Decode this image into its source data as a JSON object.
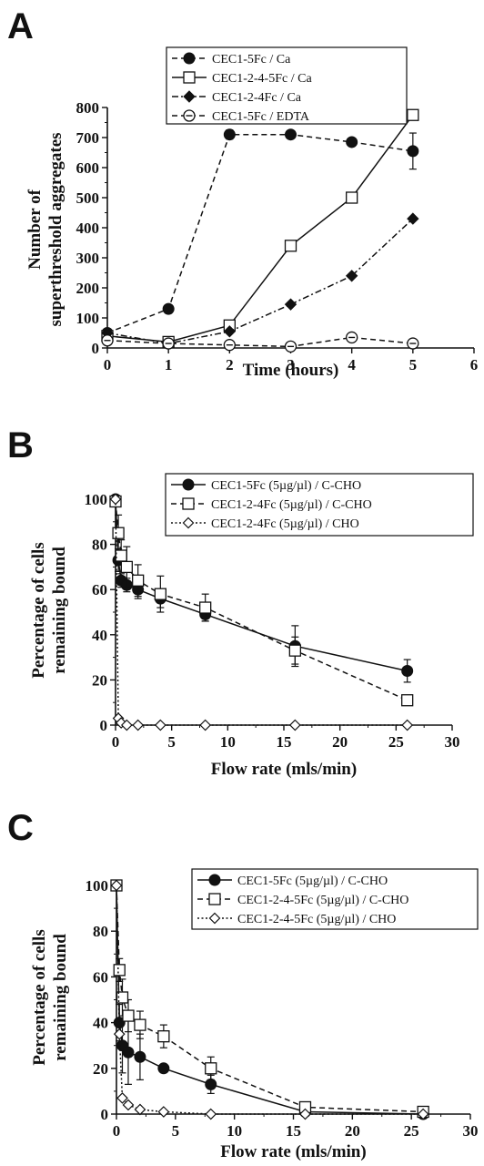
{
  "chart_data": [
    {
      "panel": "A",
      "type": "line",
      "xlabel": "Time (hours)",
      "ylabel": [
        "Number of",
        "superthreshold aggregates"
      ],
      "xlim": [
        0,
        6
      ],
      "ylim": [
        0,
        800
      ],
      "xticks": [
        "0",
        "1",
        "2",
        "3",
        "4",
        "5",
        "6"
      ],
      "yticks": [
        "0",
        "100",
        "200",
        "300",
        "400",
        "500",
        "600",
        "700",
        "800"
      ],
      "legend_position": "top",
      "series": [
        {
          "name": "CEC1-5Fc / Ca",
          "marker": "circle-filled",
          "line": "dashed",
          "x": [
            0,
            1,
            2,
            3,
            4,
            5
          ],
          "y": [
            50,
            130,
            710,
            710,
            685,
            655
          ],
          "err": [
            0,
            0,
            15,
            0,
            0,
            60
          ]
        },
        {
          "name": "CEC1-2-4-5Fc / Ca",
          "marker": "square-open",
          "line": "solid",
          "x": [
            0,
            1,
            2,
            3,
            4,
            5
          ],
          "y": [
            40,
            20,
            75,
            340,
            500,
            775
          ],
          "err": [
            0,
            0,
            0,
            0,
            0,
            0
          ]
        },
        {
          "name": "CEC1-2-4Fc / Ca",
          "marker": "diamond-filled",
          "line": "dashdot",
          "x": [
            0,
            1,
            2,
            3,
            4,
            5
          ],
          "y": [
            50,
            15,
            55,
            145,
            240,
            430
          ],
          "err": [
            0,
            0,
            0,
            0,
            0,
            0
          ]
        },
        {
          "name": "CEC1-5Fc / EDTA",
          "marker": "circle-open-dot",
          "line": "dashed",
          "x": [
            0,
            1,
            2,
            3,
            4,
            5
          ],
          "y": [
            25,
            15,
            10,
            5,
            35,
            15
          ],
          "err": [
            0,
            0,
            0,
            0,
            0,
            0
          ]
        }
      ]
    },
    {
      "panel": "B",
      "type": "line",
      "xlabel": "Flow rate (mls/min)",
      "ylabel": [
        "Percentage of cells",
        "remaining bound"
      ],
      "xlim": [
        0,
        30
      ],
      "ylim": [
        0,
        100
      ],
      "xticks": [
        "0",
        "5",
        "10",
        "15",
        "20",
        "25",
        "30"
      ],
      "yticks": [
        "0",
        "20",
        "40",
        "60",
        "80",
        "100"
      ],
      "legend_position": "top-right",
      "series": [
        {
          "name": "CEC1-5Fc (5µg/µl) / C-CHO",
          "marker": "circle-filled",
          "line": "solid",
          "x": [
            0,
            0.25,
            0.5,
            1,
            2,
            4,
            8,
            16,
            26
          ],
          "y": [
            100,
            73,
            64,
            62,
            60,
            56,
            49,
            35,
            24
          ],
          "err": [
            0,
            5,
            3,
            3,
            4,
            4,
            3,
            9,
            5
          ]
        },
        {
          "name": "CEC1-2-4Fc (5µg/µl) / C-CHO",
          "marker": "square-open",
          "line": "dashed",
          "x": [
            0,
            0.25,
            0.5,
            1,
            2,
            4,
            8,
            16,
            26
          ],
          "y": [
            99,
            85,
            75,
            70,
            64,
            58,
            52,
            33,
            11
          ],
          "err": [
            0,
            8,
            7,
            9,
            7,
            8,
            6,
            6,
            0
          ]
        },
        {
          "name": "CEC1-2-4Fc (5µg/µl) / CHO",
          "marker": "diamond-open",
          "line": "dotted",
          "x": [
            0,
            0.25,
            0.5,
            1,
            2,
            4,
            8,
            16,
            26
          ],
          "y": [
            100,
            3,
            1,
            0,
            0,
            0,
            0,
            0,
            0
          ],
          "err": [
            0,
            0,
            0,
            0,
            0,
            0,
            0,
            0,
            0
          ]
        }
      ]
    },
    {
      "panel": "C",
      "type": "line",
      "xlabel": "Flow rate (mls/min)",
      "ylabel": [
        "Percentage of cells",
        "remaining bound"
      ],
      "xlim": [
        0,
        30
      ],
      "ylim": [
        0,
        100
      ],
      "xticks": [
        "0",
        "5",
        "10",
        "15",
        "20",
        "25",
        "30"
      ],
      "yticks": [
        "0",
        "20",
        "40",
        "60",
        "80",
        "100"
      ],
      "legend_position": "top-right",
      "series": [
        {
          "name": "CEC1-5Fc (5µg/µl) / C-CHO",
          "marker": "circle-filled",
          "line": "solid",
          "x": [
            0,
            0.25,
            0.5,
            1,
            2,
            4,
            8,
            16,
            26
          ],
          "y": [
            100,
            40,
            30,
            27,
            25,
            20,
            13,
            1,
            0
          ],
          "err": [
            0,
            8,
            12,
            14,
            10,
            0,
            4,
            0,
            0
          ]
        },
        {
          "name": "CEC1-2-4-5Fc (5µg/µl) / C-CHO",
          "marker": "square-open",
          "line": "dashed",
          "x": [
            0,
            0.25,
            0.5,
            1,
            2,
            4,
            8,
            16,
            26
          ],
          "y": [
            100,
            63,
            51,
            43,
            39,
            34,
            20,
            3,
            1
          ],
          "err": [
            0,
            5,
            8,
            7,
            6,
            5,
            5,
            2,
            0
          ]
        },
        {
          "name": "CEC1-2-4-5Fc (5µg/µl) / CHO",
          "marker": "diamond-open",
          "line": "dotted",
          "x": [
            0,
            0.25,
            0.5,
            1,
            2,
            4,
            8,
            16,
            26
          ],
          "y": [
            100,
            35,
            7,
            4,
            2,
            1,
            0,
            0,
            0
          ],
          "err": [
            0,
            0,
            0,
            0,
            0,
            0,
            0,
            0,
            0
          ]
        }
      ]
    }
  ]
}
